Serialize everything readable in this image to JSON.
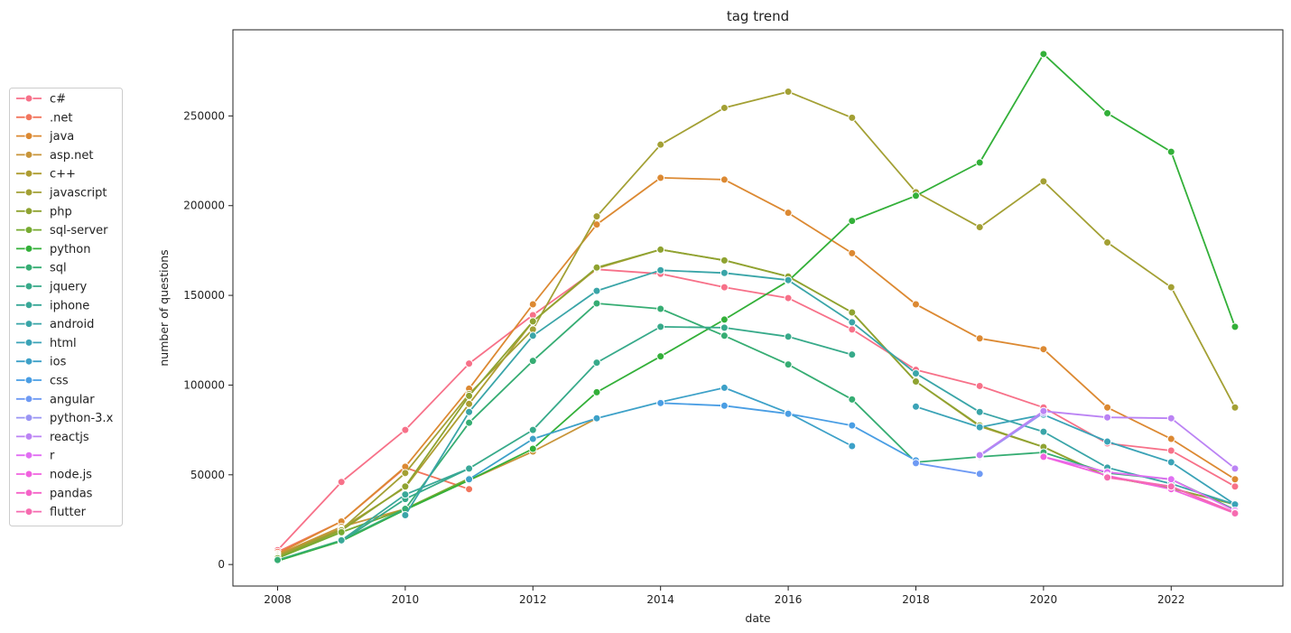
{
  "chart_data": {
    "type": "line",
    "title": "tag trend",
    "xlabel": "date",
    "ylabel": "number of questions",
    "xlim": [
      2007.3,
      2023.75
    ],
    "ylim": [
      -12000,
      298000
    ],
    "x_ticks": [
      2008,
      2010,
      2012,
      2014,
      2016,
      2018,
      2020,
      2022
    ],
    "y_ticks": [
      0,
      50000,
      100000,
      150000,
      200000,
      250000
    ],
    "legend_position": "left-outside",
    "grid": false,
    "marker": "circle",
    "series": [
      {
        "name": "c#",
        "color": "#f77189",
        "x": [
          2008,
          2009,
          2010,
          2011,
          2012,
          2013,
          2014,
          2015,
          2016,
          2017,
          2018,
          2019,
          2020,
          2021,
          2022,
          2023
        ],
        "values": [
          8000,
          46000,
          75000,
          112000,
          139000,
          164500,
          162000,
          154500,
          148500,
          131000,
          108500,
          99500,
          87500,
          67500,
          63500,
          43500
        ]
      },
      {
        "name": ".net",
        "color": "#f2765e",
        "x": [
          2008,
          2009,
          2010,
          2011
        ],
        "values": [
          7000,
          24000,
          54000,
          42000
        ]
      },
      {
        "name": "java",
        "color": "#dc8932",
        "x": [
          2008,
          2009,
          2010,
          2011,
          2012,
          2013,
          2014,
          2015,
          2016,
          2017,
          2018,
          2019,
          2020,
          2021,
          2022,
          2023
        ],
        "values": [
          6000,
          24000,
          54500,
          98000,
          145000,
          189500,
          215500,
          214500,
          196000,
          173500,
          145000,
          126000,
          120000,
          87500,
          70000,
          47500
        ]
      },
      {
        "name": "asp.net",
        "color": "#c8953a",
        "x": [
          2008,
          2009,
          2010,
          2011,
          2012,
          2013
        ],
        "values": [
          5500,
          21000,
          31000,
          47000,
          63000,
          81500
        ]
      },
      {
        "name": "c++",
        "color": "#ae9d31",
        "x": [
          2008,
          2009,
          2010,
          2011,
          2012,
          2013,
          2014,
          2015,
          2016,
          2017,
          2018,
          2019,
          2020,
          2021,
          2022,
          2023
        ],
        "values": [
          5000,
          20000,
          43000,
          89500,
          135500,
          165000,
          175500,
          169500,
          160500,
          140500,
          102000,
          77000,
          65500,
          49000,
          42500,
          33500
        ]
      },
      {
        "name": "javascript",
        "color": "#a3a034",
        "x": [
          2008,
          2009,
          2010,
          2011,
          2012,
          2013,
          2014,
          2015,
          2016,
          2017,
          2018,
          2019,
          2020,
          2021,
          2022,
          2023
        ],
        "values": [
          4500,
          19500,
          51000,
          95000,
          131000,
          194000,
          234000,
          254500,
          263500,
          249000,
          207500,
          188000,
          213500,
          179500,
          154500,
          87500
        ]
      },
      {
        "name": "php",
        "color": "#8fa331",
        "x": [
          2008,
          2009,
          2010,
          2011,
          2012,
          2013,
          2014,
          2015,
          2016,
          2017,
          2018,
          2019,
          2020,
          2021,
          2022,
          2023
        ],
        "values": [
          4000,
          19000,
          43500,
          94000,
          135500,
          165500,
          175500,
          169500,
          160500,
          140500,
          102000,
          77500,
          65500,
          49000,
          42500,
          33500
        ]
      },
      {
        "name": "sql-server",
        "color": "#77ab31",
        "x": [
          2008,
          2009,
          2010,
          2011
        ],
        "values": [
          3500,
          18000,
          31000,
          48000
        ]
      },
      {
        "name": "python",
        "color": "#33b039",
        "x": [
          2008,
          2009,
          2010,
          2011,
          2012,
          2013,
          2014,
          2015,
          2016,
          2017,
          2018,
          2019,
          2020,
          2021,
          2022,
          2023
        ],
        "values": [
          2000,
          13000,
          30500,
          47000,
          64500,
          96000,
          116000,
          136500,
          158000,
          191500,
          205500,
          224000,
          284500,
          251500,
          230000,
          132500
        ]
      },
      {
        "name": "sql",
        "color": "#36ad73",
        "x": [
          2008,
          2009,
          2010,
          2011,
          2012,
          2013,
          2014,
          2015,
          2016,
          2017,
          2018,
          2019,
          2020,
          2021,
          2022,
          2023
        ],
        "values": [
          2500,
          13500,
          31000,
          79000,
          113500,
          145500,
          142500,
          127500,
          111500,
          92000,
          57000,
          60000,
          62500,
          51000,
          47500,
          30500
        ]
      },
      {
        "name": "jquery",
        "color": "#37aa8a",
        "x": [
          2009,
          2010,
          2011,
          2012,
          2013,
          2014,
          2015,
          2016,
          2017
        ],
        "values": [
          13000,
          36500,
          53500,
          75000,
          112500,
          132500,
          132000,
          127000,
          117000
        ]
      },
      {
        "name": "iphone",
        "color": "#39a898",
        "x": [
          2009,
          2010,
          2011
        ],
        "values": [
          13500,
          39000,
          53500
        ]
      },
      {
        "name": "android",
        "color": "#3aa5a8",
        "x": [
          2010,
          2011,
          2012,
          2013,
          2014,
          2015,
          2016,
          2017,
          2018,
          2019,
          2020,
          2021,
          2022,
          2023
        ],
        "values": [
          27500,
          85000,
          127500,
          152500,
          164000,
          162500,
          158500,
          135000,
          106500,
          85000,
          74000,
          54000,
          45000,
          33500
        ]
      },
      {
        "name": "html",
        "color": "#3ba3b7",
        "x": [
          2018,
          2019,
          2020,
          2021,
          2022,
          2023
        ],
        "values": [
          88000,
          76500,
          83500,
          68500,
          57000,
          33500
        ]
      },
      {
        "name": "ios",
        "color": "#3da1c8",
        "x": [
          2011,
          2012,
          2013,
          2014,
          2015,
          2016,
          2017
        ],
        "values": [
          47500,
          70000,
          81500,
          90500,
          98500,
          84500,
          66000
        ]
      },
      {
        "name": "css",
        "color": "#4a9ee4",
        "x": [
          2014,
          2015,
          2016,
          2017,
          2018
        ],
        "values": [
          90000,
          88500,
          84000,
          77500,
          58000
        ]
      },
      {
        "name": "angular",
        "color": "#6e9af4",
        "x": [
          2018,
          2019
        ],
        "values": [
          56500,
          50500
        ]
      },
      {
        "name": "python-3.x",
        "color": "#9a95f4",
        "x": [
          2019,
          2020
        ],
        "values": [
          60500,
          84500
        ]
      },
      {
        "name": "reactjs",
        "color": "#bb83f4",
        "x": [
          2019,
          2020,
          2021,
          2022,
          2023
        ],
        "values": [
          61000,
          85500,
          82000,
          81500,
          53500
        ]
      },
      {
        "name": "r",
        "color": "#e16ff3",
        "x": [
          2020,
          2021,
          2022,
          2023
        ],
        "values": [
          60000,
          51500,
          47500,
          30000
        ]
      },
      {
        "name": "node.js",
        "color": "#f162df",
        "x": [
          2020,
          2021,
          2022,
          2023
        ],
        "values": [
          60000,
          49500,
          42000,
          28500
        ]
      },
      {
        "name": "pandas",
        "color": "#f563c8",
        "x": [
          2021,
          2022,
          2023
        ],
        "values": [
          49000,
          43500,
          29000
        ]
      },
      {
        "name": "flutter",
        "color": "#f66bb0",
        "x": [
          2021,
          2022,
          2023
        ],
        "values": [
          48500,
          43500,
          28500
        ]
      }
    ]
  }
}
